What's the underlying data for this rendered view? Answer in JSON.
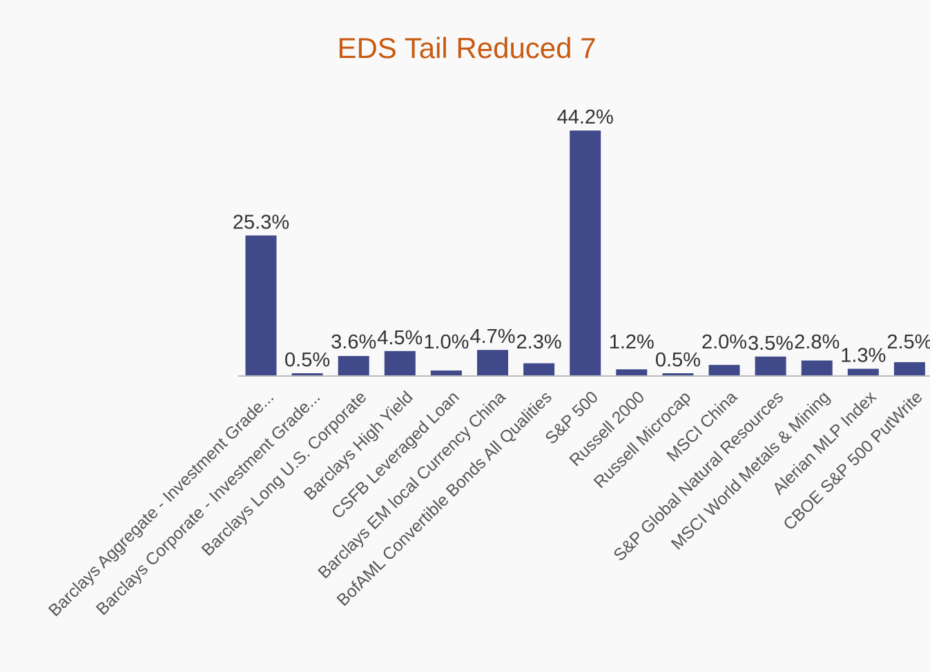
{
  "chart_data": {
    "type": "bar",
    "title": "EDS Tail Reduced 7",
    "xlabel": "",
    "ylabel": "",
    "ylim": [
      0,
      50
    ],
    "grid": false,
    "legend": "none",
    "categories": [
      "Barclays Aggregate - Investment Grade...",
      "Barclays Corporate - Investment Grade...",
      "Barclays Long U.S. Corporate",
      "Barclays High Yield",
      "CSFB Leveraged Loan",
      "Barclays EM local Currency China",
      "BofAML Convertible Bonds All Qualities",
      "S&P 500",
      "Russell 2000",
      "Russell Microcap",
      "MSCI China",
      "S&P Global Natural Resources",
      "MSCI World Metals & Mining",
      "Alerian MLP Index",
      "CBOE S&P 500 PutWrite"
    ],
    "values": [
      25.3,
      0.5,
      3.6,
      4.5,
      1.0,
      4.7,
      2.3,
      44.2,
      1.2,
      0.5,
      2.0,
      3.5,
      2.8,
      1.3,
      2.5
    ],
    "data_labels": [
      "25.3%",
      "0.5%",
      "3.6%",
      "4.5%",
      "1.0%",
      "4.7%",
      "2.3%",
      "44.2%",
      "1.2%",
      "0.5%",
      "2.0%",
      "3.5%",
      "2.8%",
      "1.3%",
      "2.5%"
    ],
    "colors": {
      "bar": "#404a8a",
      "title": "#c85a12",
      "background": "#f9f9f9"
    }
  }
}
